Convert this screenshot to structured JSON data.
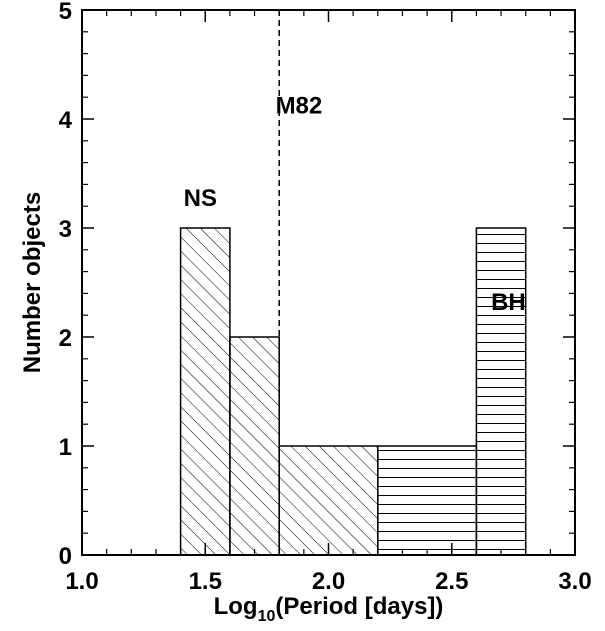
{
  "chart_data": {
    "type": "histogram",
    "title": "",
    "xlabel": {
      "main": "Log",
      "sub": "10",
      "rest": "(Period [days])"
    },
    "ylabel": "Number objects",
    "xlim": [
      1.0,
      3.0
    ],
    "ylim": [
      0,
      5
    ],
    "xticks": [
      "1.0",
      "1.5",
      "2.0",
      "2.5",
      "3.0"
    ],
    "yticks": [
      "0",
      "1",
      "2",
      "3",
      "4",
      "5"
    ],
    "grid": false,
    "series": [
      {
        "name": "NS",
        "hatch": "diagonal",
        "bins": [
          {
            "x0": 1.4,
            "x1": 1.6,
            "count": 3
          },
          {
            "x0": 1.6,
            "x1": 1.8,
            "count": 2
          },
          {
            "x0": 1.8,
            "x1": 2.2,
            "count": 1
          }
        ]
      },
      {
        "name": "BH",
        "hatch": "horizontal",
        "bins": [
          {
            "x0": 2.2,
            "x1": 2.6,
            "count": 1
          },
          {
            "x0": 2.6,
            "x1": 2.8,
            "count": 3
          }
        ]
      }
    ],
    "annotations": [
      {
        "name": "M82",
        "type": "vertical-dashed-line",
        "x": 1.8
      },
      {
        "text": "NS",
        "x": 1.48,
        "y": 3.2
      },
      {
        "text": "BH",
        "x": 2.73,
        "y": 2.25
      },
      {
        "text": "M82",
        "x": 1.88,
        "y": 4.05
      }
    ]
  }
}
